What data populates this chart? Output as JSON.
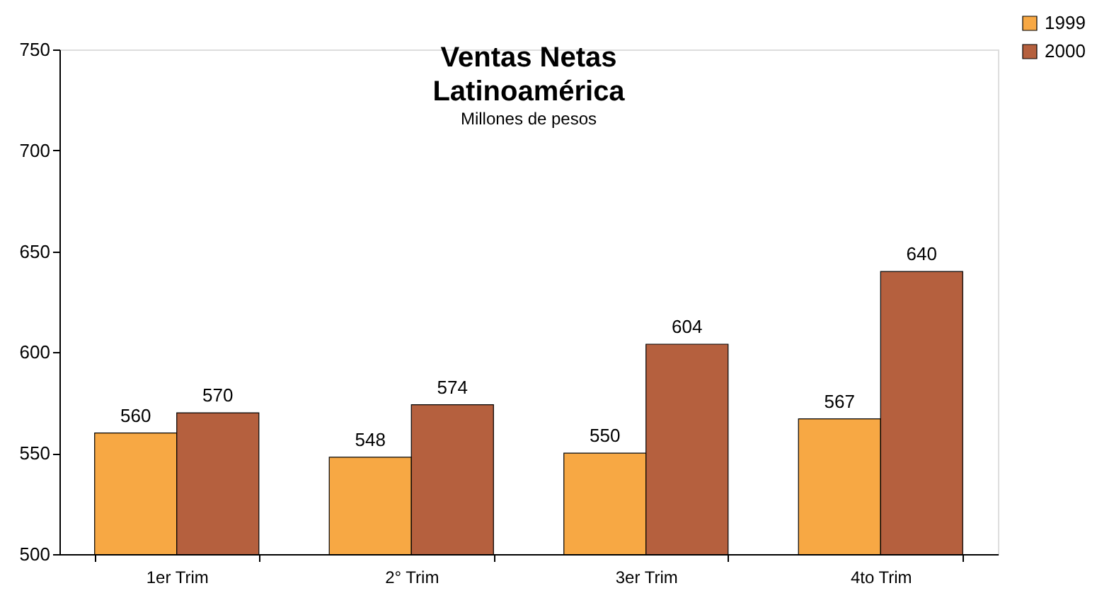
{
  "chart_data": {
    "type": "bar",
    "title": "Ventas Netas\nLatinoamérica",
    "subtitle": "Millones de pesos",
    "categories": [
      "1er Trim",
      "2° Trim",
      "3er Trim",
      "4to Trim"
    ],
    "series": [
      {
        "name": "1999",
        "color": "#f7a844",
        "values": [
          560,
          548,
          550,
          567
        ]
      },
      {
        "name": "2000",
        "color": "#b5603e",
        "values": [
          570,
          574,
          604,
          640
        ]
      }
    ],
    "ylim": [
      500,
      750
    ],
    "yticks": [
      500,
      550,
      600,
      650,
      700,
      750
    ],
    "grid": false,
    "legend": "top right",
    "data_labels": true
  }
}
